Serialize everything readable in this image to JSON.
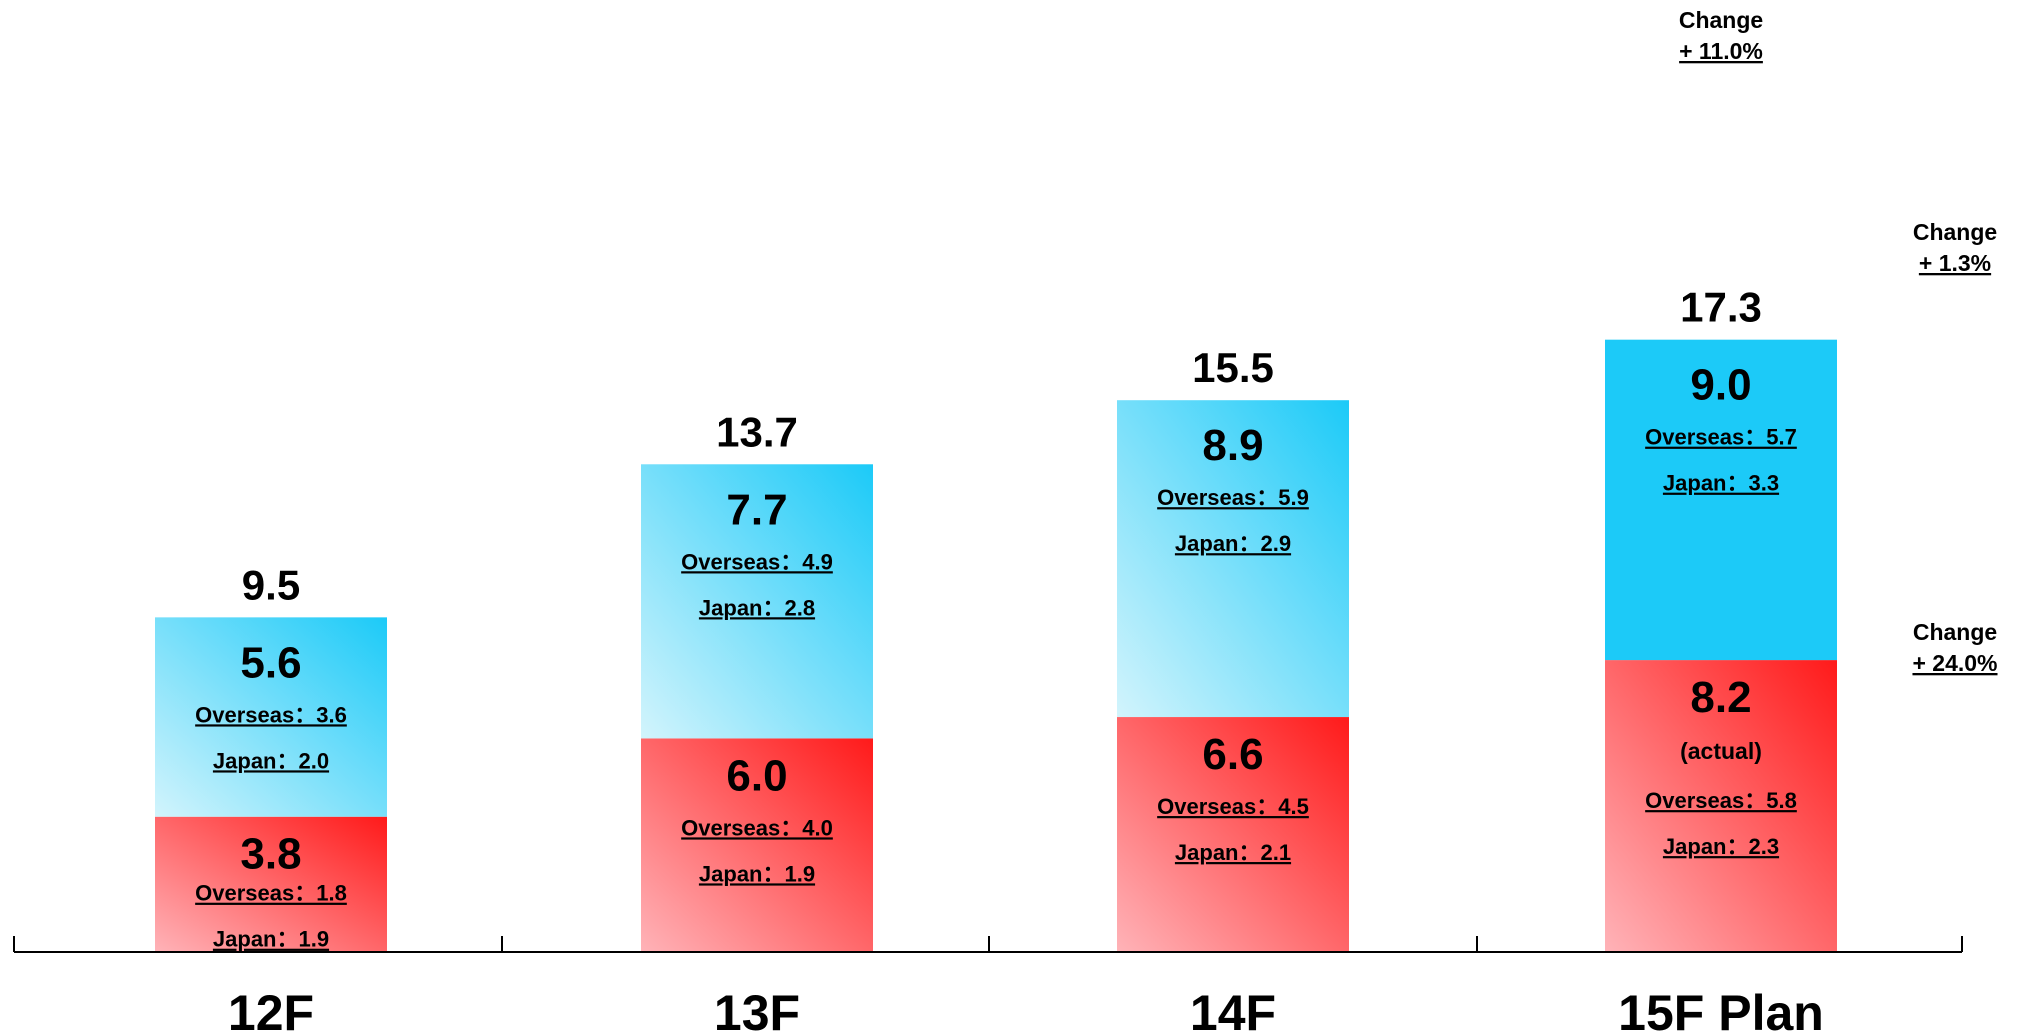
{
  "chart_data": {
    "type": "bar",
    "stacked": true,
    "categories": [
      "12F",
      "13F",
      "14F",
      "15F Plan"
    ],
    "totals": [
      9.5,
      13.7,
      15.5,
      17.3
    ],
    "ylim": [
      0,
      17.3
    ],
    "grid": false,
    "series": [
      {
        "values": [
          3.8,
          6.0,
          6.6,
          8.2
        ],
        "color_light": "#ffb3b8",
        "color_dark": "#ff1a1a",
        "notes": [
          "",
          "",
          "",
          "(actual)"
        ],
        "breakdown": [
          [
            "Overseas：1.8",
            "Japan：1.9"
          ],
          [
            "Overseas：4.0",
            "Japan：1.9"
          ],
          [
            "Overseas：4.5",
            "Japan：2.1"
          ],
          [
            "Overseas：5.8",
            "Japan：2.3"
          ]
        ]
      },
      {
        "values": [
          5.6,
          7.7,
          8.9,
          9.0
        ],
        "color_light": "#d2f4fc",
        "color_dark": "#1ccaf8",
        "notes": [
          "",
          "",
          "",
          ""
        ],
        "breakdown": [
          [
            "Overseas：3.6",
            "Japan：2.0"
          ],
          [
            "Overseas：4.9",
            "Japan：2.8"
          ],
          [
            "Overseas：5.9",
            "Japan：2.9"
          ],
          [
            "Overseas：5.7",
            "Japan：3.3"
          ]
        ]
      }
    ],
    "annotations": {
      "total_change": [
        "Change",
        "+ 11.0%"
      ],
      "upper_change": [
        "Change",
        "+ 1.3%"
      ],
      "lower_change": [
        "Change",
        "+ 24.0%"
      ]
    }
  }
}
